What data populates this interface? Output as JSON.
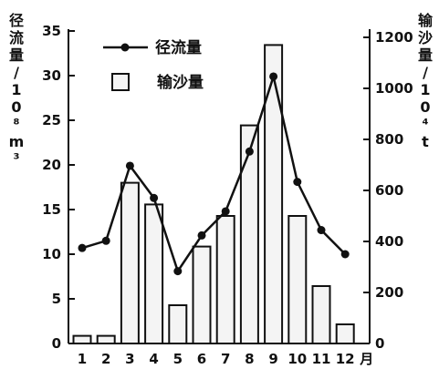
{
  "chart_data": {
    "type": "bar+line",
    "categories": [
      "1",
      "2",
      "3",
      "4",
      "5",
      "6",
      "7",
      "8",
      "9",
      "10",
      "11",
      "12"
    ],
    "month_unit": "月",
    "series": [
      {
        "name": "径流量",
        "type": "line",
        "axis": "left",
        "values": [
          10.7,
          11.5,
          19.9,
          16.3,
          8.1,
          12.1,
          14.8,
          21.5,
          29.9,
          18.1,
          12.7,
          10.0
        ]
      },
      {
        "name": "输沙量",
        "type": "bar",
        "axis": "right",
        "values": [
          30,
          30,
          630,
          545,
          150,
          380,
          500,
          855,
          1170,
          500,
          225,
          75
        ]
      }
    ],
    "left_axis": {
      "label": "径流量/10⁸m³",
      "ylim": [
        0,
        35
      ],
      "ticks": [
        "0",
        "5",
        "10",
        "15",
        "20",
        "25",
        "30",
        "35"
      ]
    },
    "right_axis": {
      "label": "输沙量/10⁴t",
      "ylim": [
        0,
        1225
      ],
      "ticks": [
        "0",
        "200",
        "400",
        "600",
        "800",
        "1000",
        "1200"
      ]
    },
    "legend": {
      "placement": "top-left",
      "entries": [
        "径流量",
        "输沙量"
      ]
    },
    "grid": false
  }
}
